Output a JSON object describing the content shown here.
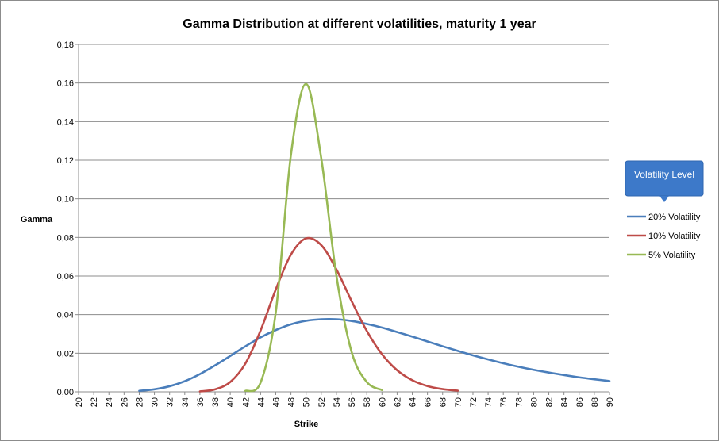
{
  "chart_data": {
    "type": "line",
    "title": "Gamma Distribution at different volatilities, maturity 1 year",
    "xlabel": "Strike",
    "ylabel": "Gamma",
    "xlim": [
      20,
      90
    ],
    "ylim": [
      0,
      0.18
    ],
    "x_ticks": [
      "20",
      "22",
      "24",
      "26",
      "28",
      "30",
      "32",
      "34",
      "36",
      "38",
      "40",
      "42",
      "44",
      "46",
      "48",
      "50",
      "52",
      "54",
      "56",
      "58",
      "60",
      "62",
      "64",
      "66",
      "68",
      "70",
      "72",
      "74",
      "76",
      "78",
      "80",
      "82",
      "84",
      "86",
      "88",
      "90"
    ],
    "y_ticks": [
      "0,00",
      "0,02",
      "0,04",
      "0,06",
      "0,08",
      "0,10",
      "0,12",
      "0,14",
      "0,16",
      "0,18"
    ],
    "grid": "horizontal",
    "legend": {
      "title": "Volatility Level",
      "placement": "right"
    },
    "series": [
      {
        "name": "20% Volatility",
        "color": "#4a7ebb",
        "x": [
          28,
          30,
          32,
          34,
          36,
          38,
          40,
          42,
          44,
          46,
          48,
          50,
          52,
          54,
          56,
          58,
          60,
          62,
          64,
          66,
          68,
          70,
          72,
          74,
          76,
          78,
          80,
          82,
          84,
          86,
          88,
          90
        ],
        "y": [
          0.0005,
          0.0013,
          0.0029,
          0.0055,
          0.0092,
          0.0137,
          0.0186,
          0.0236,
          0.0282,
          0.032,
          0.035,
          0.0368,
          0.0376,
          0.0376,
          0.0367,
          0.0352,
          0.0333,
          0.031,
          0.0286,
          0.0261,
          0.0236,
          0.0212,
          0.0189,
          0.0168,
          0.0148,
          0.013,
          0.0114,
          0.01,
          0.0087,
          0.0075,
          0.0065,
          0.0056
        ]
      },
      {
        "name": "10% Volatility",
        "color": "#be4b48",
        "x": [
          36,
          38,
          40,
          42,
          44,
          46,
          48,
          50,
          52,
          54,
          56,
          58,
          60,
          62,
          64,
          66,
          68,
          70
        ],
        "y": [
          0.0002,
          0.0013,
          0.0051,
          0.0147,
          0.0318,
          0.053,
          0.0711,
          0.0795,
          0.076,
          0.0634,
          0.047,
          0.0316,
          0.0195,
          0.0112,
          0.006,
          0.003,
          0.0014,
          0.0006
        ]
      },
      {
        "name": "5% Volatility",
        "color": "#98b954",
        "x": [
          42,
          44,
          46,
          48,
          50,
          52,
          54,
          56,
          58,
          60
        ],
        "y": [
          0.0005,
          0.0048,
          0.0412,
          0.1228,
          0.1595,
          0.121,
          0.0601,
          0.0207,
          0.0051,
          0.0009
        ]
      }
    ]
  }
}
